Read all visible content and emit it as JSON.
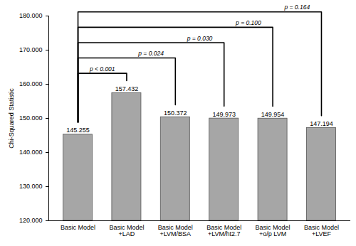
{
  "chart_data": {
    "type": "bar",
    "y_label": "Chi-Squared Statistic",
    "categories": [
      "Basic Model",
      "Basic Model\n+LAD",
      "Basic Model\n+LVM/BSA",
      "Basic Model\n+LVM/ht2.7",
      "Basic Model\n+o/p LVM",
      "Basic Model\n+LVEF"
    ],
    "values": [
      145.255,
      157.432,
      150.372,
      149.973,
      149.954,
      147.194
    ],
    "color": "#a6a6a6",
    "ylim": [
      120,
      180
    ],
    "yticks": [
      {
        "value": 120,
        "label": "120.000"
      },
      {
        "value": 130,
        "label": "130.000"
      },
      {
        "value": 140,
        "label": "140.000"
      },
      {
        "value": 150,
        "label": "150.000"
      },
      {
        "value": 160,
        "label": "160.000"
      },
      {
        "value": 170,
        "label": "170.000"
      },
      {
        "value": 180,
        "label": "180.000"
      }
    ],
    "grid": false,
    "data_labels": true,
    "annotations": [
      {
        "from": "Basic Model",
        "to": "Basic Model\n+LAD",
        "text": "p < 0.001"
      },
      {
        "from": "Basic Model",
        "to": "Basic Model\n+LVM/BSA",
        "text": "p = 0.024"
      },
      {
        "from": "Basic Model",
        "to": "Basic Model\n+LVM/ht2.7",
        "text": "p = 0.030"
      },
      {
        "from": "Basic Model",
        "to": "Basic Model\n+o/p LVM",
        "text": "p = 0.100"
      },
      {
        "from": "Basic Model",
        "to": "Basic Model\n+LVEF",
        "text": "p = 0.164"
      }
    ]
  }
}
